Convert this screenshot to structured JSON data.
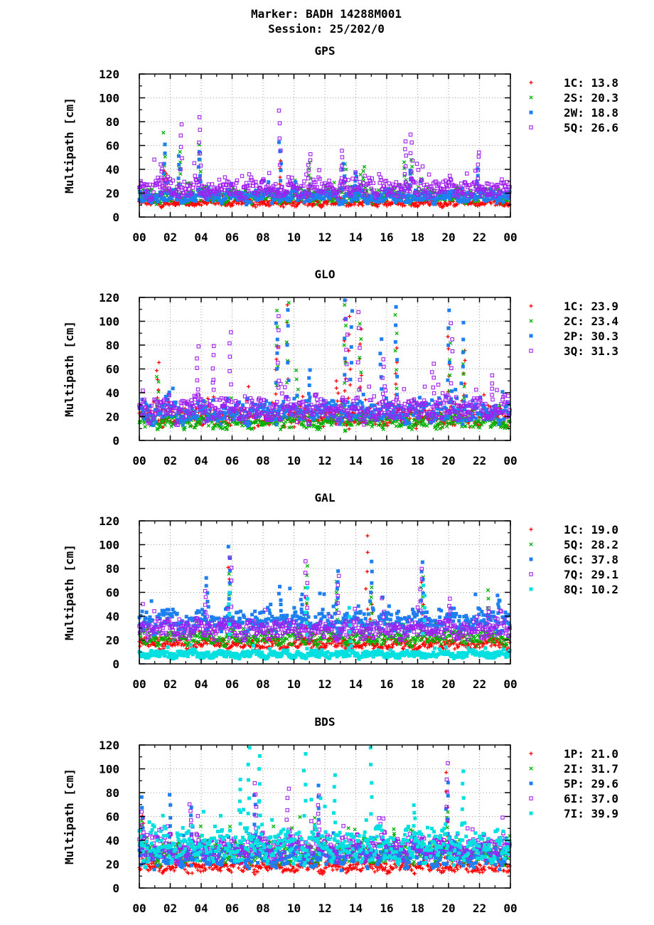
{
  "figure": {
    "title_line1": "Marker: BADH 14288M001",
    "title_line2": "Session: 25/202/0"
  },
  "chart_data": [
    {
      "type": "scatter",
      "title": "GPS",
      "ylabel": "Multipath [cm]",
      "xlabel": "",
      "ylim": [
        0,
        120
      ],
      "xlim": [
        0,
        24
      ],
      "x_ticks": [
        "00",
        "02",
        "04",
        "06",
        "08",
        "10",
        "12",
        "14",
        "16",
        "18",
        "20",
        "22",
        "00"
      ],
      "y_ticks": [
        "0",
        "20",
        "40",
        "60",
        "80",
        "100",
        "120"
      ],
      "grid": true,
      "legend_position": "right",
      "series": [
        {
          "name": "1C",
          "rms": "13.8",
          "color": "#ff0000",
          "marker": "plus",
          "base": 12,
          "spread": 3,
          "peaks": [
            [
              1.6,
              45
            ],
            [
              9.1,
              48
            ],
            [
              10.9,
              25
            ],
            [
              1.8,
              38
            ]
          ]
        },
        {
          "name": "2S",
          "rms": "20.3",
          "color": "#00b000",
          "marker": "x",
          "base": 18,
          "spread": 6,
          "peaks": [
            [
              1.6,
              71
            ],
            [
              2.6,
              55
            ],
            [
              3.9,
              63
            ],
            [
              11.0,
              48
            ],
            [
              13.3,
              45
            ],
            [
              14.5,
              44
            ],
            [
              17.2,
              47
            ],
            [
              17.6,
              50
            ]
          ]
        },
        {
          "name": "2W",
          "rms": "18.8",
          "color": "#1e7ff0",
          "marker": "square",
          "base": 17,
          "spread": 5,
          "peaks": [
            [
              1.6,
              62
            ],
            [
              2.6,
              52
            ],
            [
              3.9,
              57
            ],
            [
              9.1,
              63
            ],
            [
              13.2,
              45
            ],
            [
              14.0,
              38
            ],
            [
              17.5,
              42
            ],
            [
              21.9,
              41
            ]
          ]
        },
        {
          "name": "5Q",
          "rms": "26.6",
          "color": "#a020f0",
          "marker": "opensquare",
          "base": 24,
          "spread": 8,
          "peaks": [
            [
              2.7,
              78
            ],
            [
              3.9,
              86
            ],
            [
              9.1,
              91
            ],
            [
              11.0,
              55
            ],
            [
              13.1,
              57
            ],
            [
              17.2,
              66
            ],
            [
              17.6,
              71
            ],
            [
              21.9,
              56
            ],
            [
              1.4,
              47
            ]
          ]
        }
      ]
    },
    {
      "type": "scatter",
      "title": "GLO",
      "ylabel": "Multipath [cm]",
      "xlabel": "",
      "ylim": [
        0,
        120
      ],
      "xlim": [
        0,
        24
      ],
      "x_ticks": [
        "00",
        "02",
        "04",
        "06",
        "08",
        "10",
        "12",
        "14",
        "16",
        "18",
        "20",
        "22",
        "00"
      ],
      "y_ticks": [
        "0",
        "20",
        "40",
        "60",
        "80",
        "100",
        "120"
      ],
      "grid": true,
      "legend_position": "right",
      "series": [
        {
          "name": "1C",
          "rms": "23.9",
          "color": "#ff0000",
          "marker": "plus",
          "base": 20,
          "spread": 8,
          "peaks": [
            [
              1.2,
              68
            ],
            [
              8.9,
              80
            ],
            [
              9.6,
              115
            ],
            [
              13.3,
              118
            ],
            [
              13.6,
              105
            ],
            [
              14.3,
              95
            ],
            [
              16.6,
              78
            ],
            [
              20.0,
              90
            ],
            [
              21.0,
              78
            ],
            [
              12.8,
              52
            ]
          ]
        },
        {
          "name": "2C",
          "rms": "23.4",
          "color": "#00b000",
          "marker": "x",
          "base": 16,
          "spread": 6,
          "peaks": [
            [
              1.2,
              56
            ],
            [
              8.9,
              112
            ],
            [
              9.6,
              118
            ],
            [
              13.3,
              115
            ],
            [
              14.3,
              100
            ],
            [
              16.6,
              106
            ],
            [
              20.1,
              95
            ],
            [
              21.0,
              77
            ],
            [
              10.2,
              60
            ]
          ]
        },
        {
          "name": "2P",
          "rms": "30.3",
          "color": "#1e7ff0",
          "marker": "square",
          "base": 24,
          "spread": 9,
          "peaks": [
            [
              8.9,
              100
            ],
            [
              9.6,
              112
            ],
            [
              13.3,
              118
            ],
            [
              13.7,
              110
            ],
            [
              15.6,
              86
            ],
            [
              16.6,
              113
            ],
            [
              20.0,
              110
            ],
            [
              20.9,
              100
            ],
            [
              11.0,
              60
            ]
          ]
        },
        {
          "name": "3Q",
          "rms": "31.3",
          "color": "#a020f0",
          "marker": "opensquare",
          "base": 26,
          "spread": 10,
          "peaks": [
            [
              3.8,
              79
            ],
            [
              4.8,
              81
            ],
            [
              5.9,
              93
            ],
            [
              9.0,
              107
            ],
            [
              13.4,
              102
            ],
            [
              14.2,
              108
            ],
            [
              15.8,
              70
            ],
            [
              19.0,
              67
            ],
            [
              20.2,
              100
            ],
            [
              22.8,
              55
            ]
          ]
        }
      ]
    },
    {
      "type": "scatter",
      "title": "GAL",
      "ylabel": "Multipath [cm]",
      "xlabel": "",
      "ylim": [
        0,
        120
      ],
      "xlim": [
        0,
        24
      ],
      "x_ticks": [
        "00",
        "02",
        "04",
        "06",
        "08",
        "10",
        "12",
        "14",
        "16",
        "18",
        "20",
        "22",
        "00"
      ],
      "y_ticks": [
        "0",
        "20",
        "40",
        "60",
        "80",
        "100",
        "120"
      ],
      "grid": true,
      "legend_position": "right",
      "series": [
        {
          "name": "1C",
          "rms": "19.0",
          "color": "#ff0000",
          "marker": "plus",
          "base": 17,
          "spread": 5,
          "peaks": [
            [
              14.7,
              109
            ],
            [
              5.8,
              83
            ],
            [
              10.8,
              58
            ],
            [
              15.0,
              60
            ],
            [
              18.3,
              70
            ]
          ]
        },
        {
          "name": "5Q",
          "rms": "28.2",
          "color": "#00b000",
          "marker": "x",
          "base": 22,
          "spread": 6,
          "peaks": [
            [
              5.8,
              78
            ],
            [
              10.8,
              85
            ],
            [
              12.8,
              71
            ],
            [
              15.0,
              65
            ],
            [
              18.3,
              75
            ],
            [
              22.6,
              62
            ]
          ]
        },
        {
          "name": "6C",
          "rms": "37.8",
          "color": "#1e7ff0",
          "marker": "square",
          "base": 36,
          "spread": 9,
          "peaks": [
            [
              4.4,
              73
            ],
            [
              5.8,
              100
            ],
            [
              9.1,
              66
            ],
            [
              12.8,
              78
            ],
            [
              15.0,
              86
            ],
            [
              18.3,
              88
            ],
            [
              23.2,
              60
            ],
            [
              10.5,
              60
            ]
          ]
        },
        {
          "name": "7Q",
          "rms": "29.1",
          "color": "#a020f0",
          "marker": "opensquare",
          "base": 29,
          "spread": 8,
          "peaks": [
            [
              4.3,
              62
            ],
            [
              5.9,
              92
            ],
            [
              10.8,
              89
            ],
            [
              12.9,
              74
            ],
            [
              18.2,
              80
            ],
            [
              20.1,
              55
            ],
            [
              22.6,
              48
            ]
          ]
        },
        {
          "name": "8Q",
          "rms": "10.2",
          "color": "#00e0e0",
          "marker": "square",
          "base": 8,
          "spread": 3,
          "peaks": [
            [
              5.8,
              60
            ],
            [
              10.8,
              65
            ],
            [
              18.4,
              68
            ],
            [
              13.6,
              48
            ]
          ]
        }
      ]
    },
    {
      "type": "scatter",
      "title": "BDS",
      "ylabel": "Multipath [cm]",
      "xlabel": "",
      "ylim": [
        0,
        120
      ],
      "xlim": [
        0,
        24
      ],
      "x_ticks": [
        "00",
        "02",
        "04",
        "06",
        "08",
        "10",
        "12",
        "14",
        "16",
        "18",
        "20",
        "22",
        "00"
      ],
      "y_ticks": [
        "0",
        "20",
        "40",
        "60",
        "80",
        "100",
        "120"
      ],
      "grid": true,
      "legend_position": "right",
      "series": [
        {
          "name": "1P",
          "rms": "21.0",
          "color": "#ff0000",
          "marker": "plus",
          "base": 18,
          "spread": 5,
          "peaks": [
            [
              19.9,
              97
            ],
            [
              0.2,
              62
            ],
            [
              11.6,
              45
            ]
          ]
        },
        {
          "name": "2I",
          "rms": "31.7",
          "color": "#00b000",
          "marker": "x",
          "base": 30,
          "spread": 9,
          "peaks": [
            [
              19.9,
              65
            ],
            [
              0.2,
              58
            ],
            [
              11.4,
              60
            ],
            [
              16.5,
              52
            ]
          ]
        },
        {
          "name": "5P",
          "rms": "29.6",
          "color": "#1e7ff0",
          "marker": "square",
          "base": 27,
          "spread": 9,
          "peaks": [
            [
              0.2,
              78
            ],
            [
              2.0,
              79
            ],
            [
              3.4,
              68
            ],
            [
              11.6,
              88
            ],
            [
              19.9,
              90
            ],
            [
              7.5,
              80
            ]
          ]
        },
        {
          "name": "6I",
          "rms": "37.0",
          "color": "#a020f0",
          "marker": "opensquare",
          "base": 34,
          "spread": 10,
          "peaks": [
            [
              0.2,
              65
            ],
            [
              3.3,
              72
            ],
            [
              7.5,
              88
            ],
            [
              9.6,
              85
            ],
            [
              19.9,
              105
            ],
            [
              11.6,
              80
            ]
          ]
        },
        {
          "name": "7I",
          "rms": "39.9",
          "color": "#00e0e0",
          "marker": "square",
          "base": 36,
          "spread": 14,
          "peaks": [
            [
              7.1,
              120
            ],
            [
              7.8,
              113
            ],
            [
              10.7,
              114
            ],
            [
              15.0,
              118
            ],
            [
              20.9,
              98
            ],
            [
              6.5,
              92
            ],
            [
              12.6,
              95
            ],
            [
              17.8,
              70
            ]
          ]
        }
      ]
    }
  ]
}
